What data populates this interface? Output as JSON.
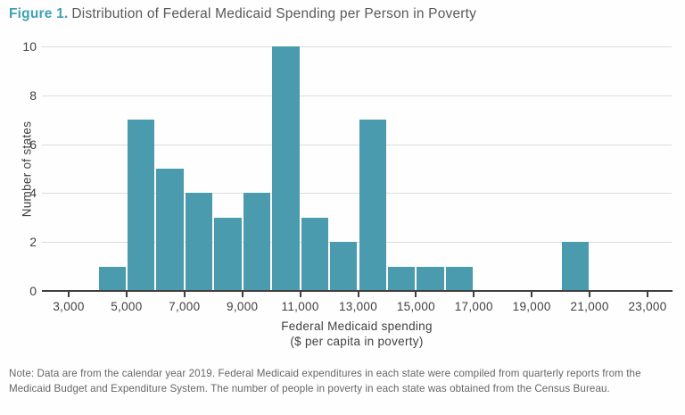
{
  "header": {
    "figure_label": "Figure 1.",
    "title": "Distribution of Federal Medicaid Spending per Person in Poverty"
  },
  "chart_data": {
    "type": "bar",
    "subtype": "histogram",
    "title": "Distribution of Federal Medicaid Spending per Person in Poverty",
    "xlabel": [
      "Federal Medicaid spending",
      "($ per capita in poverty)"
    ],
    "ylabel": "Number of states",
    "bin_width": 1000,
    "bins": [
      {
        "start": 4000,
        "end": 5000,
        "count": 1
      },
      {
        "start": 5000,
        "end": 6000,
        "count": 7
      },
      {
        "start": 6000,
        "end": 7000,
        "count": 5
      },
      {
        "start": 7000,
        "end": 8000,
        "count": 4
      },
      {
        "start": 8000,
        "end": 9000,
        "count": 3
      },
      {
        "start": 9000,
        "end": 10000,
        "count": 4
      },
      {
        "start": 10000,
        "end": 11000,
        "count": 10
      },
      {
        "start": 11000,
        "end": 12000,
        "count": 3
      },
      {
        "start": 12000,
        "end": 13000,
        "count": 2
      },
      {
        "start": 13000,
        "end": 14000,
        "count": 7
      },
      {
        "start": 14000,
        "end": 15000,
        "count": 1
      },
      {
        "start": 15000,
        "end": 16000,
        "count": 1
      },
      {
        "start": 16000,
        "end": 17000,
        "count": 1
      },
      {
        "start": 20000,
        "end": 21000,
        "count": 2
      }
    ],
    "x_ticks": [
      {
        "value": 3000,
        "label": "3,000"
      },
      {
        "value": 5000,
        "label": "5,000"
      },
      {
        "value": 7000,
        "label": "7,000"
      },
      {
        "value": 9000,
        "label": "9,000"
      },
      {
        "value": 11000,
        "label": "11,000"
      },
      {
        "value": 13000,
        "label": "13,000"
      },
      {
        "value": 15000,
        "label": "15,000"
      },
      {
        "value": 17000,
        "label": "17,000"
      },
      {
        "value": 19000,
        "label": "19,000"
      },
      {
        "value": 21000,
        "label": "21,000"
      },
      {
        "value": 23000,
        "label": "23,000"
      }
    ],
    "y_ticks": [
      {
        "value": 0,
        "label": "0"
      },
      {
        "value": 2,
        "label": "2"
      },
      {
        "value": 4,
        "label": "4"
      },
      {
        "value": 6,
        "label": "6"
      },
      {
        "value": 8,
        "label": "8"
      },
      {
        "value": 10,
        "label": "10"
      }
    ],
    "xlim": [
      2100,
      23850
    ],
    "ylim": [
      0,
      10
    ],
    "grid": true,
    "legend": "none",
    "bar_color": "#4a9bad",
    "grid_color": "#dddddd",
    "axis_line_color": "#3f4040"
  },
  "note": "Note: Data are from the calendar year 2019. Federal Medicaid expenditures in each state were compiled from quarterly reports from the Medicaid Budget and Expenditure System. The number of people in poverty in each state was obtained from the Census Bureau.",
  "colors": {
    "accent_teal": "#3fa0b5",
    "title_text": "#58595b",
    "axis_text": "#414142",
    "note_text": "#666667"
  }
}
